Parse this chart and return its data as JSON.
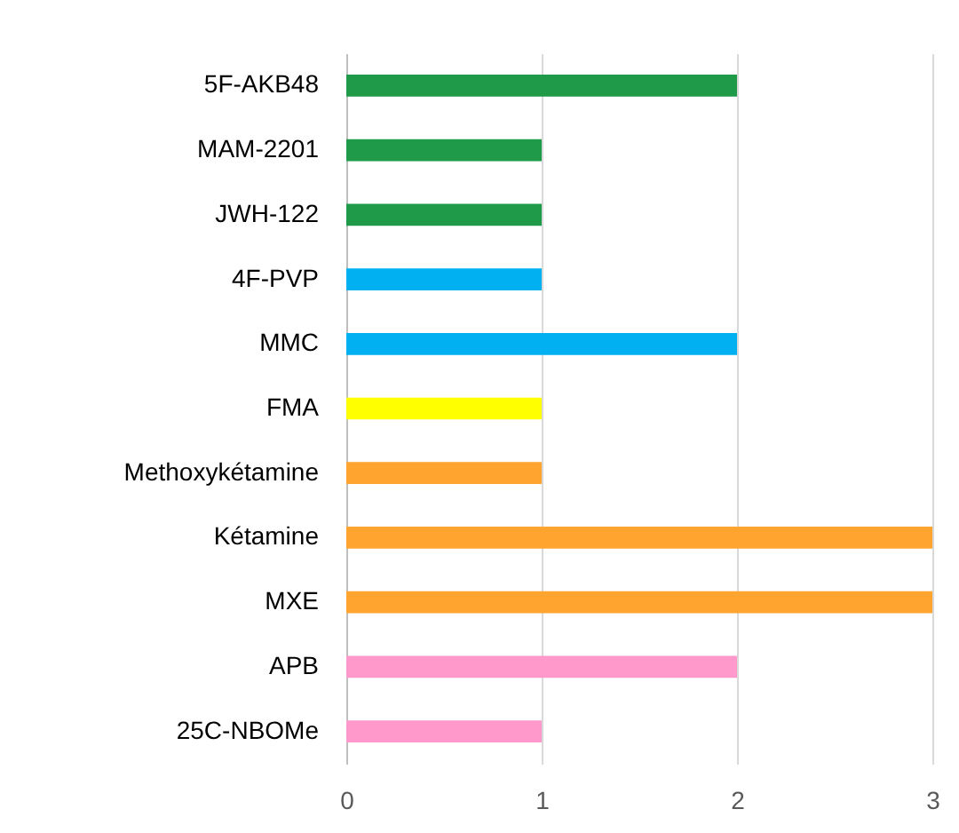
{
  "chart_data": {
    "type": "bar",
    "orientation": "horizontal",
    "categories": [
      "5F-AKB48",
      "MAM-2201",
      "JWH-122",
      "4F-PVP",
      "MMC",
      "FMA",
      "Methoxykétamine",
      "Kétamine",
      "MXE",
      "APB",
      "25C-NBOMe"
    ],
    "values": [
      2,
      1,
      1,
      1,
      2,
      1,
      1,
      3,
      3,
      2,
      1
    ],
    "colors": [
      "#1e9a48",
      "#1e9a48",
      "#1e9a48",
      "#00b0f0",
      "#00b0f0",
      "#ffff00",
      "#ffa52f",
      "#ffa52f",
      "#ffa52f",
      "#ff99cc",
      "#ff99cc"
    ],
    "xlim": [
      0,
      3
    ],
    "xticks": [
      0,
      1,
      2,
      3
    ],
    "grid": "x"
  }
}
